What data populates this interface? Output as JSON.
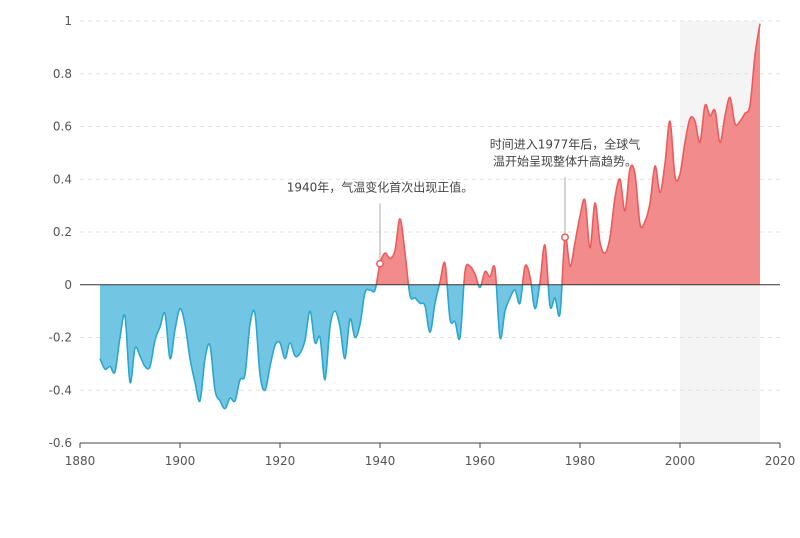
{
  "chart_data": {
    "type": "area",
    "xlim": [
      1880,
      2020
    ],
    "ylim": [
      -0.6,
      1
    ],
    "x_ticks": [
      "1880",
      "1900",
      "1920",
      "1940",
      "1960",
      "1980",
      "2000",
      "2020"
    ],
    "y_ticks": [
      "1",
      "0.8",
      "0.6",
      "0.4",
      "0.2",
      "0",
      "-0.2",
      "-0.4",
      "-0.6"
    ],
    "grid": "horizontal dashed",
    "highlight_band": [
      2000,
      2016
    ],
    "positive_color": "#f28c8c",
    "negative_color": "#72c6e3",
    "positive_line_color": "#ee5a5a",
    "negative_line_color": "#2aa6cf",
    "series": [
      {
        "x": [
          1884,
          1885,
          1886,
          1887,
          1888,
          1889,
          1890,
          1891,
          1892,
          1893,
          1894,
          1895,
          1896,
          1897,
          1898,
          1899,
          1900,
          1901,
          1902,
          1903,
          1904,
          1905,
          1906,
          1907,
          1908,
          1909,
          1910,
          1911,
          1912,
          1913,
          1914,
          1915,
          1916,
          1917,
          1918,
          1919,
          1920,
          1921,
          1922,
          1923,
          1924,
          1925,
          1926,
          1927,
          1928,
          1929,
          1930,
          1931,
          1932,
          1933,
          1934,
          1935,
          1936,
          1937,
          1938,
          1939,
          1940,
          1941,
          1942,
          1943,
          1944,
          1945,
          1946,
          1947,
          1948,
          1949,
          1950,
          1951,
          1952,
          1953,
          1954,
          1955,
          1956,
          1957,
          1958,
          1959,
          1960,
          1961,
          1962,
          1963,
          1964,
          1965,
          1966,
          1967,
          1968,
          1969,
          1970,
          1971,
          1972,
          1973,
          1974,
          1975,
          1976,
          1977,
          1978,
          1979,
          1980,
          1981,
          1982,
          1983,
          1984,
          1985,
          1986,
          1987,
          1988,
          1989,
          1990,
          1991,
          1992,
          1993,
          1994,
          1995,
          1996,
          1997,
          1998,
          1999,
          2000,
          2001,
          2002,
          2003,
          2004,
          2005,
          2006,
          2007,
          2008,
          2009,
          2010,
          2011,
          2012,
          2013,
          2014,
          2015,
          2016
        ],
        "values": [
          -0.28,
          -0.32,
          -0.31,
          -0.33,
          -0.2,
          -0.12,
          -0.37,
          -0.24,
          -0.27,
          -0.31,
          -0.31,
          -0.21,
          -0.16,
          -0.11,
          -0.28,
          -0.17,
          -0.09,
          -0.15,
          -0.28,
          -0.37,
          -0.44,
          -0.28,
          -0.23,
          -0.4,
          -0.44,
          -0.47,
          -0.43,
          -0.44,
          -0.36,
          -0.34,
          -0.15,
          -0.11,
          -0.34,
          -0.4,
          -0.31,
          -0.23,
          -0.22,
          -0.28,
          -0.22,
          -0.27,
          -0.26,
          -0.21,
          -0.1,
          -0.22,
          -0.2,
          -0.36,
          -0.16,
          -0.1,
          -0.16,
          -0.28,
          -0.13,
          -0.2,
          -0.15,
          -0.03,
          -0.02,
          -0.02,
          0.08,
          0.12,
          0.1,
          0.13,
          0.25,
          0.12,
          -0.04,
          -0.05,
          -0.07,
          -0.08,
          -0.18,
          -0.07,
          0.01,
          0.08,
          -0.13,
          -0.14,
          -0.2,
          0.05,
          0.07,
          0.04,
          -0.01,
          0.05,
          0.03,
          0.06,
          -0.2,
          -0.1,
          -0.05,
          -0.02,
          -0.07,
          0.07,
          0.03,
          -0.09,
          0.01,
          0.15,
          -0.08,
          -0.05,
          -0.11,
          0.18,
          0.07,
          0.16,
          0.26,
          0.32,
          0.14,
          0.31,
          0.16,
          0.12,
          0.18,
          0.33,
          0.4,
          0.28,
          0.44,
          0.42,
          0.23,
          0.24,
          0.31,
          0.45,
          0.35,
          0.46,
          0.62,
          0.41,
          0.42,
          0.54,
          0.63,
          0.62,
          0.54,
          0.68,
          0.64,
          0.66,
          0.54,
          0.64,
          0.71,
          0.61,
          0.62,
          0.65,
          0.68,
          0.87,
          0.99
        ]
      }
    ],
    "annotations": [
      {
        "x": 1940,
        "y": 0.08,
        "text": "1940年，气温变化首次出现正值。"
      },
      {
        "x": 1977,
        "y": 0.18,
        "text_lines": [
          "时间进入1977年后，全球气",
          "温开始呈现整体升高趋势。"
        ]
      }
    ]
  }
}
